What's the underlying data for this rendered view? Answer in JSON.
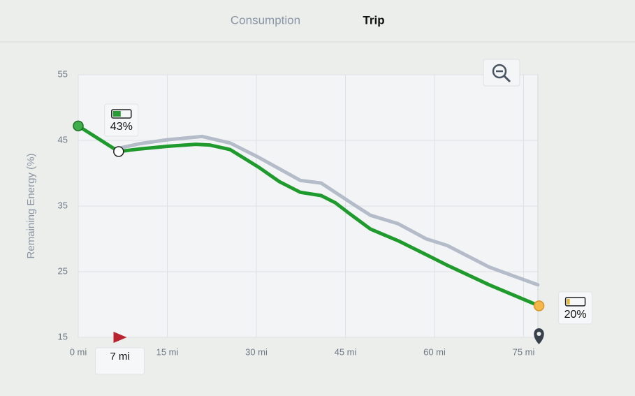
{
  "tabs": [
    "Consumption",
    "Trip"
  ],
  "chart_data": {
    "type": "line",
    "y_label": "Remaining Energy (%)",
    "ylim": [
      15,
      55
    ],
    "yticks": [
      15,
      25,
      35,
      45,
      55
    ],
    "xlim": [
      0,
      78
    ],
    "xticks": [
      {
        "value": 0,
        "label": "0 mi"
      },
      {
        "value": 15,
        "label": "15 mi"
      },
      {
        "value": 30,
        "label": "30 mi"
      },
      {
        "value": 45,
        "label": "45 mi"
      },
      {
        "value": 60,
        "label": "60 mi"
      },
      {
        "value": 75,
        "label": "75 mi"
      }
    ],
    "grid": true,
    "marker": {
      "value": 7,
      "label": "7 mi"
    },
    "series": [
      {
        "color": "#b3bcc8",
        "x": [
          6.8,
          10.4,
          15,
          20.9,
          25.6,
          30.4,
          37.4,
          40.9,
          45.6,
          49.2,
          53.9,
          58.6,
          62.1,
          69.2,
          77.4
        ],
        "values": [
          43.8,
          44.5,
          45.1,
          45.6,
          44.6,
          42.4,
          38.9,
          38.5,
          35.7,
          33.6,
          32.3,
          30.0,
          29.0,
          25.7,
          23.0
        ]
      },
      {
        "color": "#1f9a2c",
        "x": [
          0,
          6.8,
          10.4,
          15,
          19.8,
          22.1,
          25.6,
          30.4,
          33.9,
          37.4,
          40.9,
          43.3,
          45.6,
          49.2,
          53.9,
          58.6,
          62.1,
          69.2,
          77.6
        ],
        "values": [
          47.2,
          43.3,
          43.7,
          44.1,
          44.4,
          44.3,
          43.6,
          40.9,
          38.7,
          37.1,
          36.6,
          35.5,
          33.9,
          31.5,
          29.7,
          27.6,
          26.0,
          23.0,
          19.8
        ],
        "value_labels": [
          null,
          "43%",
          null,
          null,
          null,
          null,
          null,
          null,
          null,
          null,
          null,
          null,
          null,
          null,
          null,
          null,
          null,
          null,
          "20%"
        ]
      }
    ]
  }
}
